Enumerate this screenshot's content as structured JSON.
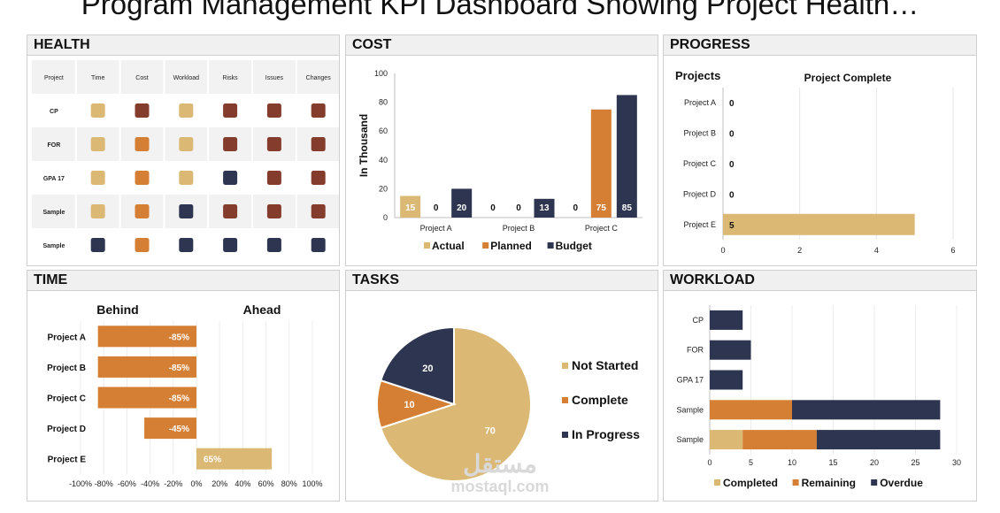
{
  "page": {
    "title": "Program Management KPI Dashboard Showing Project Health…"
  },
  "colors": {
    "tan": "#dbb874",
    "orange": "#d47f33",
    "maroon": "#843c2c",
    "navy": "#2e3550"
  },
  "health": {
    "title": "HEALTH",
    "columns": [
      "Project",
      "Time",
      "Cost",
      "Workload",
      "Risks",
      "Issues",
      "Changes"
    ],
    "rows": [
      {
        "label": "CP",
        "cells": [
          "tan",
          "maroon",
          "tan",
          "maroon",
          "maroon",
          "maroon"
        ]
      },
      {
        "label": "FOR",
        "cells": [
          "tan",
          "orange",
          "tan",
          "maroon",
          "maroon",
          "maroon"
        ]
      },
      {
        "label": "GPA 17",
        "cells": [
          "tan",
          "orange",
          "tan",
          "navy",
          "maroon",
          "maroon"
        ]
      },
      {
        "label": "Sample",
        "cells": [
          "tan",
          "orange",
          "navy",
          "maroon",
          "maroon",
          "maroon"
        ]
      },
      {
        "label": "Sample",
        "cells": [
          "navy",
          "orange",
          "navy",
          "navy",
          "navy",
          "navy"
        ]
      }
    ]
  },
  "cost": {
    "title": "COST",
    "chart_data": {
      "type": "bar",
      "categories": [
        "Project A",
        "Project B",
        "Project C"
      ],
      "series": [
        {
          "name": "Actual",
          "color": "#dbb874",
          "values": [
            15,
            0,
            0
          ]
        },
        {
          "name": "Planned",
          "color": "#d47f33",
          "values": [
            0,
            0,
            75
          ]
        },
        {
          "name": "Budget",
          "color": "#2e3550",
          "values": [
            20,
            13,
            85
          ]
        }
      ],
      "ylabel": "In Thousand",
      "ylim": [
        0,
        100
      ],
      "yticks": [
        0,
        20,
        40,
        60,
        80,
        100
      ],
      "legend": "bottom"
    }
  },
  "progress": {
    "title": "PROGRESS",
    "chart_data": {
      "type": "bar",
      "orientation": "horizontal",
      "title": "Project Complete",
      "ylabel": "Projects",
      "categories": [
        "Project A",
        "Project B",
        "Project C",
        "Project D",
        "Project E"
      ],
      "values": [
        0,
        0,
        0,
        0,
        5
      ],
      "xlim": [
        0,
        6
      ],
      "xticks": [
        0,
        2,
        4,
        6
      ],
      "color": "#dbb874"
    }
  },
  "time": {
    "title": "TIME",
    "chart_data": {
      "type": "bar",
      "orientation": "horizontal",
      "header_left": "Behind",
      "header_right": "Ahead",
      "categories": [
        "Project A",
        "Project B",
        "Project C",
        "Project D",
        "Project E"
      ],
      "values": [
        -85,
        -85,
        -85,
        -45,
        65
      ],
      "labels": [
        "-85%",
        "-85%",
        "-85%",
        "-45%",
        "65%"
      ],
      "xlim": [
        -100,
        100
      ],
      "xticks": [
        "-100%",
        "-80%",
        "-60%",
        "-40%",
        "-20%",
        "0%",
        "20%",
        "40%",
        "60%",
        "80%",
        "100%"
      ],
      "negative_color": "#d47f33",
      "positive_color": "#dbb874"
    }
  },
  "tasks": {
    "title": "TASKS",
    "chart_data": {
      "type": "pie",
      "slices": [
        {
          "name": "Not Started",
          "value": 70,
          "color": "#dbb874"
        },
        {
          "name": "Complete",
          "value": 10,
          "color": "#d47f33"
        },
        {
          "name": "In Progress",
          "value": 20,
          "color": "#2e3550"
        }
      ],
      "legend": "right"
    }
  },
  "workload": {
    "title": "WORKLOAD",
    "chart_data": {
      "type": "bar",
      "orientation": "horizontal",
      "stacked": true,
      "categories": [
        "CP",
        "FOR",
        "GPA 17",
        "Sample",
        "Sample"
      ],
      "series": [
        {
          "name": "Completed",
          "color": "#dbb874",
          "values": [
            0,
            0,
            0,
            0,
            4
          ]
        },
        {
          "name": "Remaining",
          "color": "#d47f33",
          "values": [
            0,
            0,
            0,
            10,
            9
          ]
        },
        {
          "name": "Overdue",
          "color": "#2e3550",
          "values": [
            4,
            5,
            4,
            18,
            15
          ]
        }
      ],
      "xlim": [
        0,
        30
      ],
      "xticks": [
        0,
        5,
        10,
        15,
        20,
        25,
        30
      ],
      "legend": "bottom"
    }
  },
  "watermark": {
    "arabic": "مستقل",
    "latin": "mostaql.com"
  }
}
